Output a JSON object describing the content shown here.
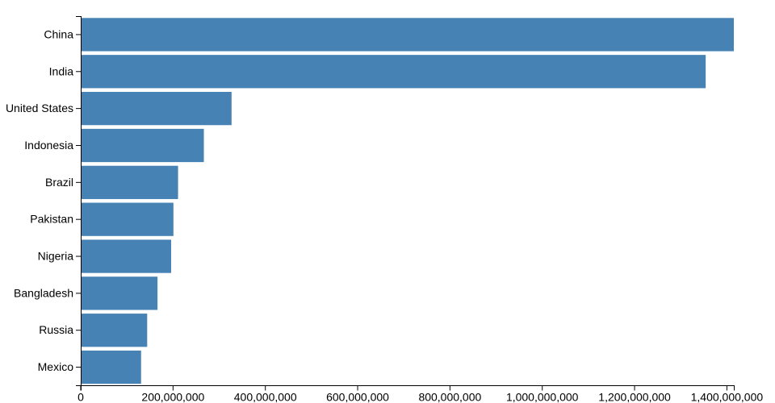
{
  "chart_data": {
    "type": "bar",
    "orientation": "horizontal",
    "title": "",
    "xlabel": "",
    "ylabel": "",
    "categories": [
      "China",
      "India",
      "United States",
      "Indonesia",
      "Brazil",
      "Pakistan",
      "Nigeria",
      "Bangladesh",
      "Russia",
      "Mexico"
    ],
    "values": [
      1415045928,
      1354051854,
      326766748,
      266794980,
      210867954,
      200813818,
      195875237,
      166368149,
      143964709,
      130759074
    ],
    "xlim": [
      0,
      1415045928
    ],
    "x_tick_values": [
      0,
      200000000,
      400000000,
      600000000,
      800000000,
      1000000000,
      1200000000,
      1400000000
    ],
    "x_tick_labels": [
      "0",
      "200,000,000",
      "400,000,000",
      "600,000,000",
      "800,000,000",
      "1,000,000,000",
      "1,200,000,000",
      "1,400,000,000"
    ],
    "grid": false,
    "legend": false,
    "colors": {
      "bar": "#4682b4",
      "axis": "#000000",
      "text": "#000000",
      "background": "#ffffff"
    }
  }
}
